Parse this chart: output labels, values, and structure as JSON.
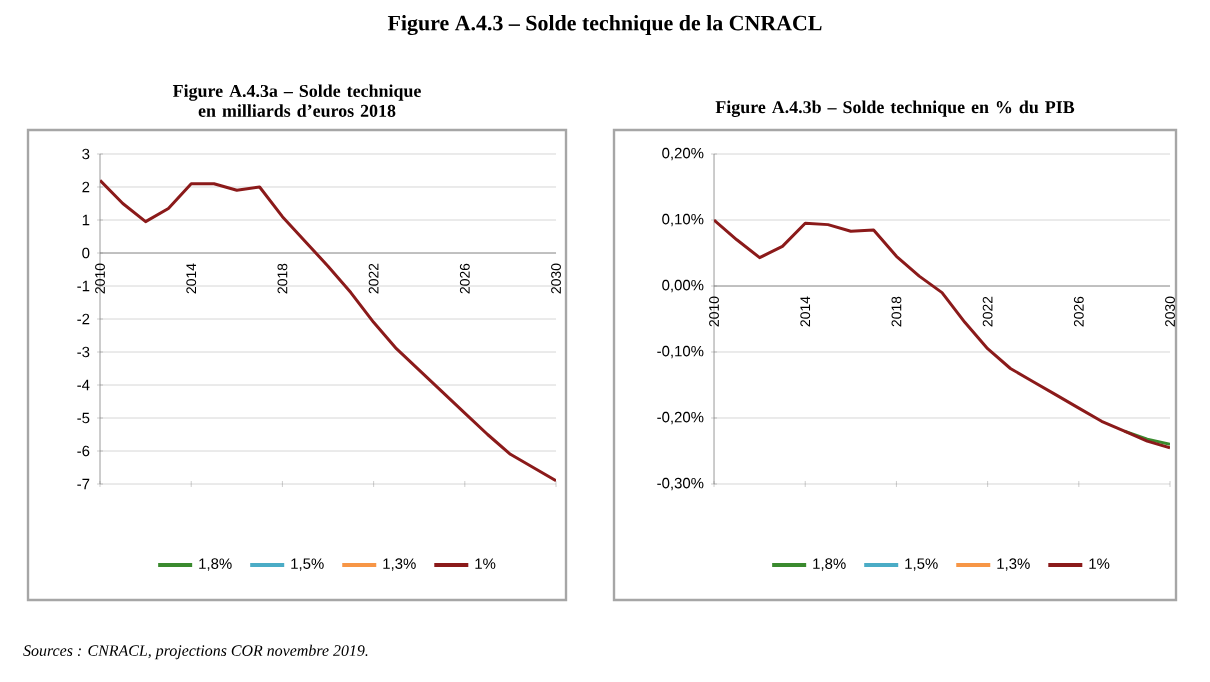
{
  "chart_data": [
    {
      "type": "line",
      "title": "Figure A.4.3a – Solde technique en milliards d’euros 2018",
      "annotations": [
        "Figure A.4.3 – Solde technique de la CNRACL",
        "*Sources : CNRACL, projections COR novembre 2019.*"
      ],
      "x": [
        2010,
        2011,
        2012,
        2013,
        2014,
        2015,
        2016,
        2017,
        2018,
        2019,
        2020,
        2021,
        2022,
        2023,
        2024,
        2025,
        2026,
        2027,
        2028,
        2029,
        2030
      ],
      "xlim": [
        2010,
        2030
      ],
      "xticks": [
        2010,
        2014,
        2018,
        2022,
        2026,
        2030
      ],
      "ylim": [
        -7,
        3
      ],
      "yticks": [
        -7,
        -6,
        -5,
        -4,
        -3,
        -2,
        -1,
        0,
        1,
        2,
        3
      ],
      "grid": "y",
      "legend": "bottom",
      "series": [
        {
          "name": "1,8%",
          "color": "#3a8a2e",
          "values": [
            null,
            null,
            null,
            null,
            null,
            null,
            null,
            null,
            null,
            null,
            null,
            null,
            null,
            null,
            null,
            null,
            null,
            null,
            null,
            null,
            null
          ]
        },
        {
          "name": "1,5%",
          "color": "#4bacc6",
          "values": [
            null,
            null,
            null,
            null,
            null,
            null,
            null,
            null,
            null,
            null,
            null,
            null,
            null,
            null,
            null,
            null,
            null,
            null,
            null,
            null,
            null
          ]
        },
        {
          "name": "1,3%",
          "color": "#f79646",
          "values": [
            null,
            null,
            null,
            null,
            null,
            null,
            null,
            null,
            null,
            null,
            null,
            null,
            null,
            null,
            null,
            null,
            null,
            null,
            null,
            null,
            null
          ]
        },
        {
          "name": "1%",
          "color": "#8b1a1a",
          "values": [
            2.2,
            1.5,
            0.95,
            1.35,
            2.1,
            2.1,
            1.9,
            2.0,
            1.1,
            0.35,
            -0.4,
            -1.2,
            -2.1,
            -2.9,
            -3.55,
            -4.2,
            -4.85,
            -5.5,
            -6.1,
            -6.5,
            -6.9
          ]
        }
      ]
    },
    {
      "type": "line",
      "title": "Figure A.4.3b – Solde technique en % du PIB",
      "x": [
        2010,
        2011,
        2012,
        2013,
        2014,
        2015,
        2016,
        2017,
        2018,
        2019,
        2020,
        2021,
        2022,
        2023,
        2024,
        2025,
        2026,
        2027,
        2028,
        2029,
        2030
      ],
      "xlim": [
        2010,
        2030
      ],
      "xticks": [
        2010,
        2014,
        2018,
        2022,
        2026,
        2030
      ],
      "ylim": [
        -0.3,
        0.2
      ],
      "yticks": [
        {
          "value": -0.3,
          "label": "-0,30%"
        },
        {
          "value": -0.2,
          "label": "-0,20%"
        },
        {
          "value": -0.1,
          "label": "-0,10%"
        },
        {
          "value": 0,
          "label": "0,00%"
        },
        {
          "value": 0.1,
          "label": "0,10%"
        },
        {
          "value": 0.2,
          "label": "0,20%"
        }
      ],
      "grid": "y",
      "legend": "bottom",
      "series": [
        {
          "name": "1,8%",
          "color": "#3a8a2e",
          "values": [
            null,
            null,
            null,
            null,
            null,
            null,
            null,
            null,
            null,
            null,
            null,
            null,
            null,
            null,
            null,
            null,
            null,
            null,
            -0.22,
            -0.232,
            -0.24
          ]
        },
        {
          "name": "1,5%",
          "color": "#4bacc6",
          "values": [
            null,
            null,
            null,
            null,
            null,
            null,
            null,
            null,
            null,
            null,
            null,
            null,
            null,
            null,
            null,
            null,
            null,
            null,
            null,
            null,
            null
          ]
        },
        {
          "name": "1,3%",
          "color": "#f79646",
          "values": [
            null,
            null,
            null,
            null,
            null,
            null,
            null,
            null,
            null,
            null,
            null,
            null,
            null,
            null,
            null,
            null,
            null,
            null,
            null,
            null,
            null
          ]
        },
        {
          "name": "1%",
          "color": "#8b1a1a",
          "values": [
            0.1,
            0.07,
            0.043,
            0.06,
            0.095,
            0.093,
            0.083,
            0.085,
            0.045,
            0.015,
            -0.01,
            -0.055,
            -0.095,
            -0.125,
            -0.145,
            -0.165,
            -0.185,
            -0.205,
            -0.22,
            -0.235,
            -0.245
          ]
        }
      ]
    }
  ]
}
